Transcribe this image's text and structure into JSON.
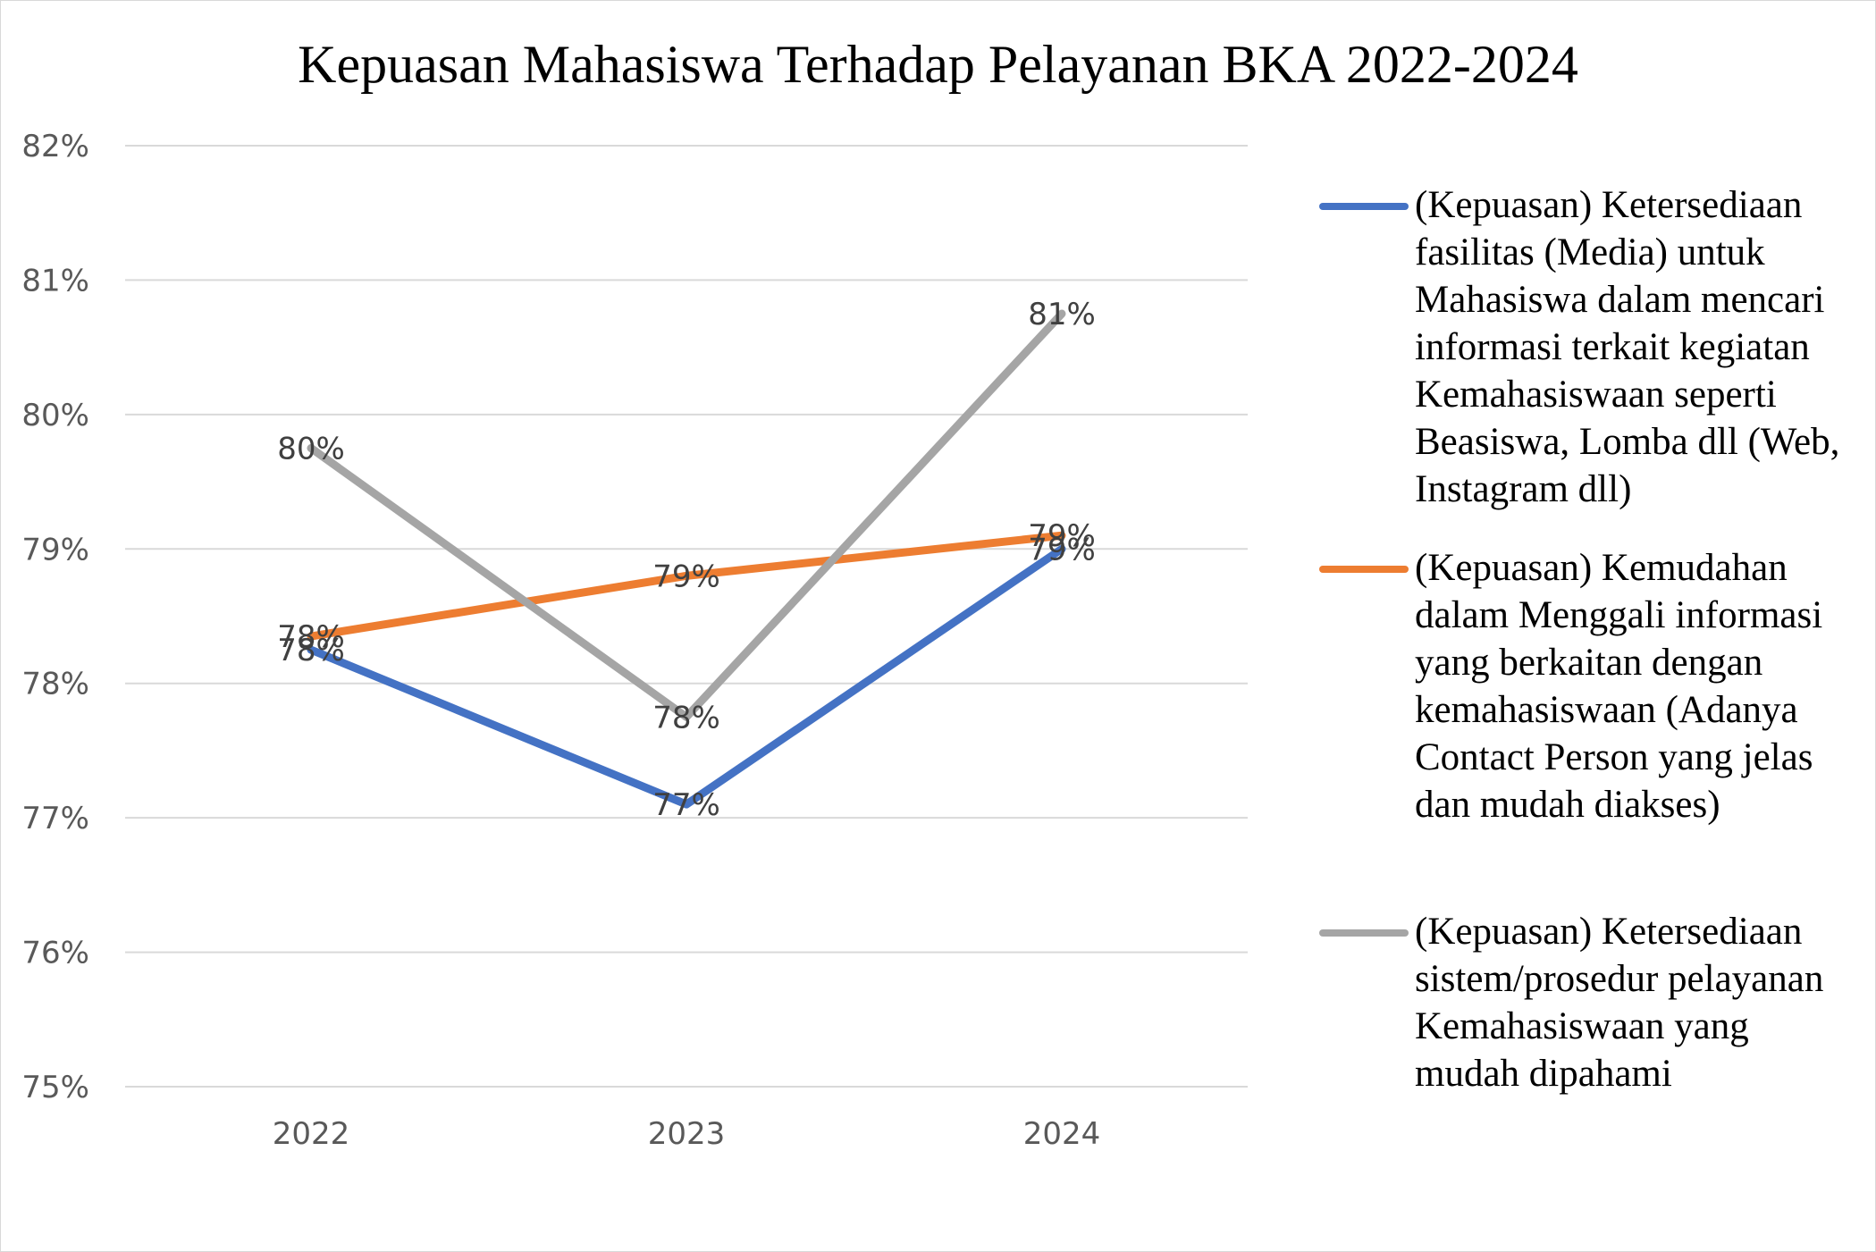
{
  "chart_data": {
    "type": "line",
    "title": "Kepuasan Mahasiswa Terhadap Pelayanan BKA 2022-2024",
    "categories": [
      "2022",
      "2023",
      "2024"
    ],
    "y_ticks": [
      "82%",
      "81%",
      "80%",
      "79%",
      "78%",
      "77%",
      "76%",
      "75%"
    ],
    "ylim": [
      75,
      82
    ],
    "grid": true,
    "legend_position": "right",
    "series": [
      {
        "name": "(Kepuasan) Ketersediaan fasilitas (Media) untuk Mahasiswa dalam mencari informasi terkait kegiatan Kemahasiswaan seperti Beasiswa, Lomba dll (Web, Instagram dll)",
        "values": [
          78.25,
          77.1,
          79.0
        ],
        "labels": [
          "78%",
          "77%",
          "79%"
        ],
        "color": "#4472C4"
      },
      {
        "name": "(Kepuasan) Kemudahan dalam Menggali informasi yang berkaitan dengan kemahasiswaan (Adanya Contact Person yang jelas dan mudah diakses)",
        "values": [
          78.35,
          78.8,
          79.1
        ],
        "labels": [
          "78%",
          "79%",
          "79%"
        ],
        "color": "#ED7D31"
      },
      {
        "name": "(Kepuasan) Ketersediaan sistem/prosedur pelayanan Kemahasiswaan yang mudah dipahami",
        "values": [
          79.75,
          77.75,
          80.75
        ],
        "labels": [
          "80%",
          "78%",
          "81%"
        ],
        "color": "#A5A5A5"
      }
    ]
  }
}
